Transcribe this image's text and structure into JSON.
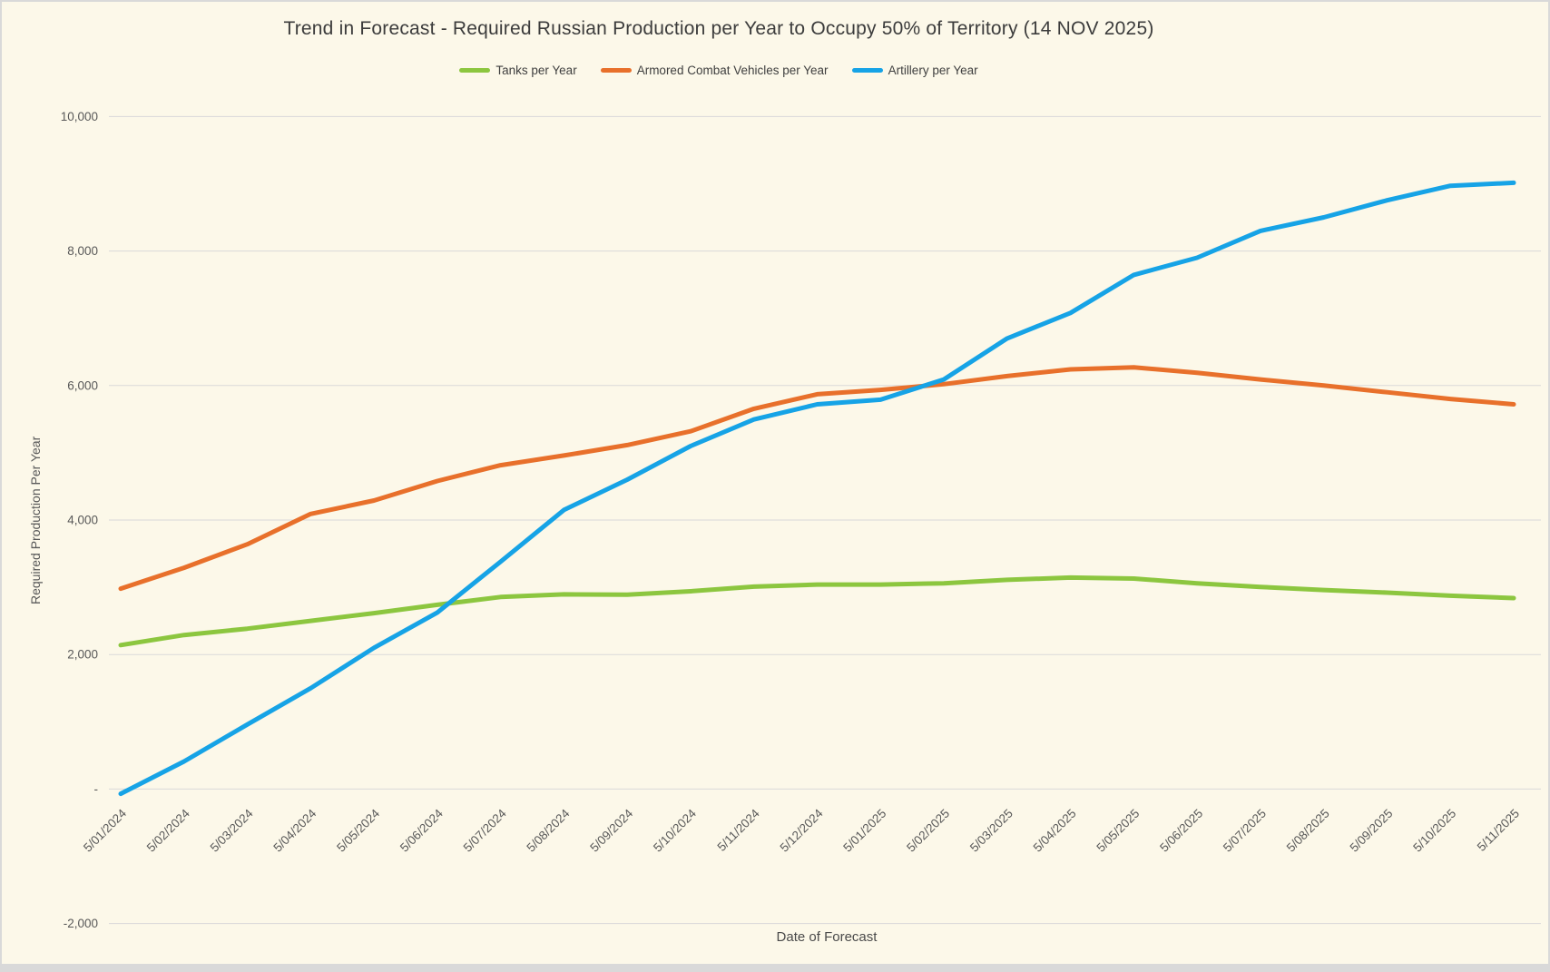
{
  "colors": {
    "background": "#fcf8e9",
    "frame_border": "#d9d9d9",
    "gridline": "#d9d9d9",
    "title_text": "#3c3c3c",
    "axis_text": "#595959",
    "tanks_green": "#8cc63f",
    "acv_orange": "#e8702b",
    "artillery_blue": "#16a3e6"
  },
  "chart_data": {
    "type": "line",
    "title": "Trend in Forecast - Required Russian Production per Year to Occupy 50% of Territory (14 NOV 2025)",
    "xlabel": "Date of Forecast",
    "ylabel": "Required Production Per Year",
    "legend_position": "top",
    "grid": true,
    "ylim": [
      -2000,
      10000
    ],
    "y_ticks": {
      "values": [
        10000,
        8000,
        6000,
        4000,
        2000,
        0,
        -2000
      ],
      "labels": [
        "10,000",
        "8,000",
        "6,000",
        "4,000",
        "2,000",
        "-",
        "-2,000"
      ]
    },
    "categories": [
      "5/01/2024",
      "5/02/2024",
      "5/03/2024",
      "5/04/2024",
      "5/05/2024",
      "5/06/2024",
      "5/07/2024",
      "5/08/2024",
      "5/09/2024",
      "5/10/2024",
      "5/11/2024",
      "5/12/2024",
      "5/01/2025",
      "5/02/2025",
      "5/03/2025",
      "5/04/2025",
      "5/05/2025",
      "5/06/2025",
      "5/07/2025",
      "5/08/2025",
      "5/09/2025",
      "5/10/2025",
      "5/11/2025"
    ],
    "series": [
      {
        "name": "Tanks per Year",
        "color": "#8cc63f",
        "values": [
          2140,
          2290,
          2385,
          2500,
          2615,
          2740,
          2855,
          2895,
          2890,
          2940,
          3010,
          3040,
          3040,
          3060,
          3110,
          3145,
          3130,
          3060,
          3005,
          2960,
          2920,
          2875,
          2840
        ]
      },
      {
        "name": "Armored Combat Vehicles per Year",
        "color": "#e8702b",
        "values": [
          2980,
          3290,
          3640,
          4090,
          4290,
          4580,
          4815,
          4960,
          5115,
          5320,
          5655,
          5870,
          5935,
          6020,
          6140,
          6240,
          6270,
          6190,
          6090,
          6000,
          5900,
          5800,
          5720
        ]
      },
      {
        "name": "Artillery per Year",
        "color": "#16a3e6",
        "values": [
          -70,
          410,
          960,
          1500,
          2100,
          2625,
          3380,
          4150,
          4600,
          5100,
          5495,
          5720,
          5790,
          6090,
          6700,
          7080,
          7645,
          7900,
          8300,
          8500,
          8755,
          8970,
          9015
        ]
      }
    ]
  }
}
